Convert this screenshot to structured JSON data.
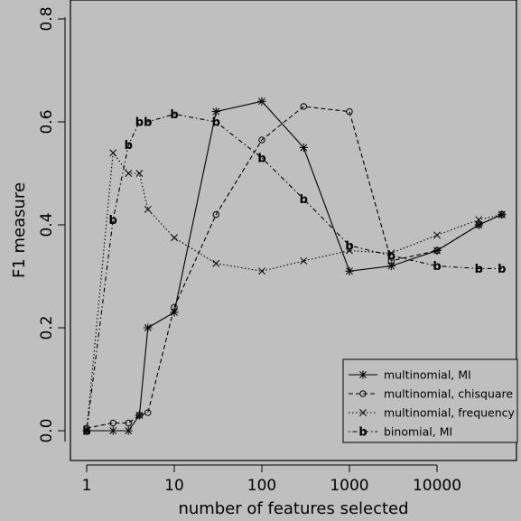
{
  "chart_data": {
    "type": "line",
    "title": "",
    "xlabel": "number of features selected",
    "ylabel": "F1 measure",
    "xscale": "log",
    "xlim": [
      1,
      60000
    ],
    "ylim": [
      0,
      0.8
    ],
    "xticks": [
      1,
      10,
      100,
      1000,
      10000
    ],
    "xtick_labels": [
      "1",
      "10",
      "100",
      "1000",
      "10000"
    ],
    "yticks": [
      0,
      0.2,
      0.4,
      0.6,
      0.8
    ],
    "ytick_labels": [
      "0.0",
      "0.2",
      "0.4",
      "0.6",
      "0.8"
    ],
    "grid": false,
    "legend_position": "bottom-right",
    "series": [
      {
        "name": "multinomial, MI",
        "line_style": "solid",
        "marker": "asterisk",
        "x": [
          1,
          2,
          3,
          4,
          5,
          10,
          30,
          100,
          300,
          1000,
          3000,
          10000,
          30000,
          55000
        ],
        "y": [
          0.0,
          0.0,
          0.0,
          0.03,
          0.2,
          0.23,
          0.62,
          0.64,
          0.55,
          0.31,
          0.32,
          0.35,
          0.4,
          0.42
        ]
      },
      {
        "name": "multinomial, chisquare",
        "line_style": "dashed",
        "marker": "circle",
        "x": [
          1,
          2,
          3,
          4,
          5,
          10,
          30,
          100,
          300,
          1000,
          3000,
          10000,
          30000,
          55000
        ],
        "y": [
          0.005,
          0.015,
          0.015,
          0.03,
          0.035,
          0.24,
          0.42,
          0.565,
          0.63,
          0.62,
          0.33,
          0.35,
          0.4,
          0.42
        ]
      },
      {
        "name": "multinomial, frequency",
        "line_style": "dotted",
        "marker": "x",
        "x": [
          1,
          2,
          3,
          4,
          5,
          10,
          30,
          100,
          300,
          1000,
          3000,
          10000,
          30000,
          55000
        ],
        "y": [
          0.0,
          0.54,
          0.5,
          0.5,
          0.43,
          0.375,
          0.325,
          0.31,
          0.33,
          0.35,
          0.345,
          0.38,
          0.41,
          0.42
        ]
      },
      {
        "name": "binomial, MI",
        "line_style": "dotdash",
        "marker": "b",
        "x": [
          1,
          2,
          3,
          4,
          5,
          10,
          30,
          100,
          300,
          1000,
          3000,
          10000,
          30000,
          55000
        ],
        "y": [
          0.0,
          0.41,
          0.555,
          0.6,
          0.6,
          0.615,
          0.6,
          0.53,
          0.45,
          0.36,
          0.34,
          0.32,
          0.315,
          0.315
        ]
      }
    ]
  }
}
